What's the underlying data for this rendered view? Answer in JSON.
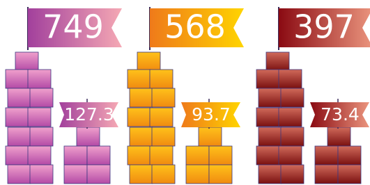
{
  "groups": [
    {
      "value": "749",
      "secondary": "127.3"
    },
    {
      "value": "568",
      "secondary": "93.7"
    },
    {
      "value": "397",
      "secondary": "73.4"
    }
  ]
}
